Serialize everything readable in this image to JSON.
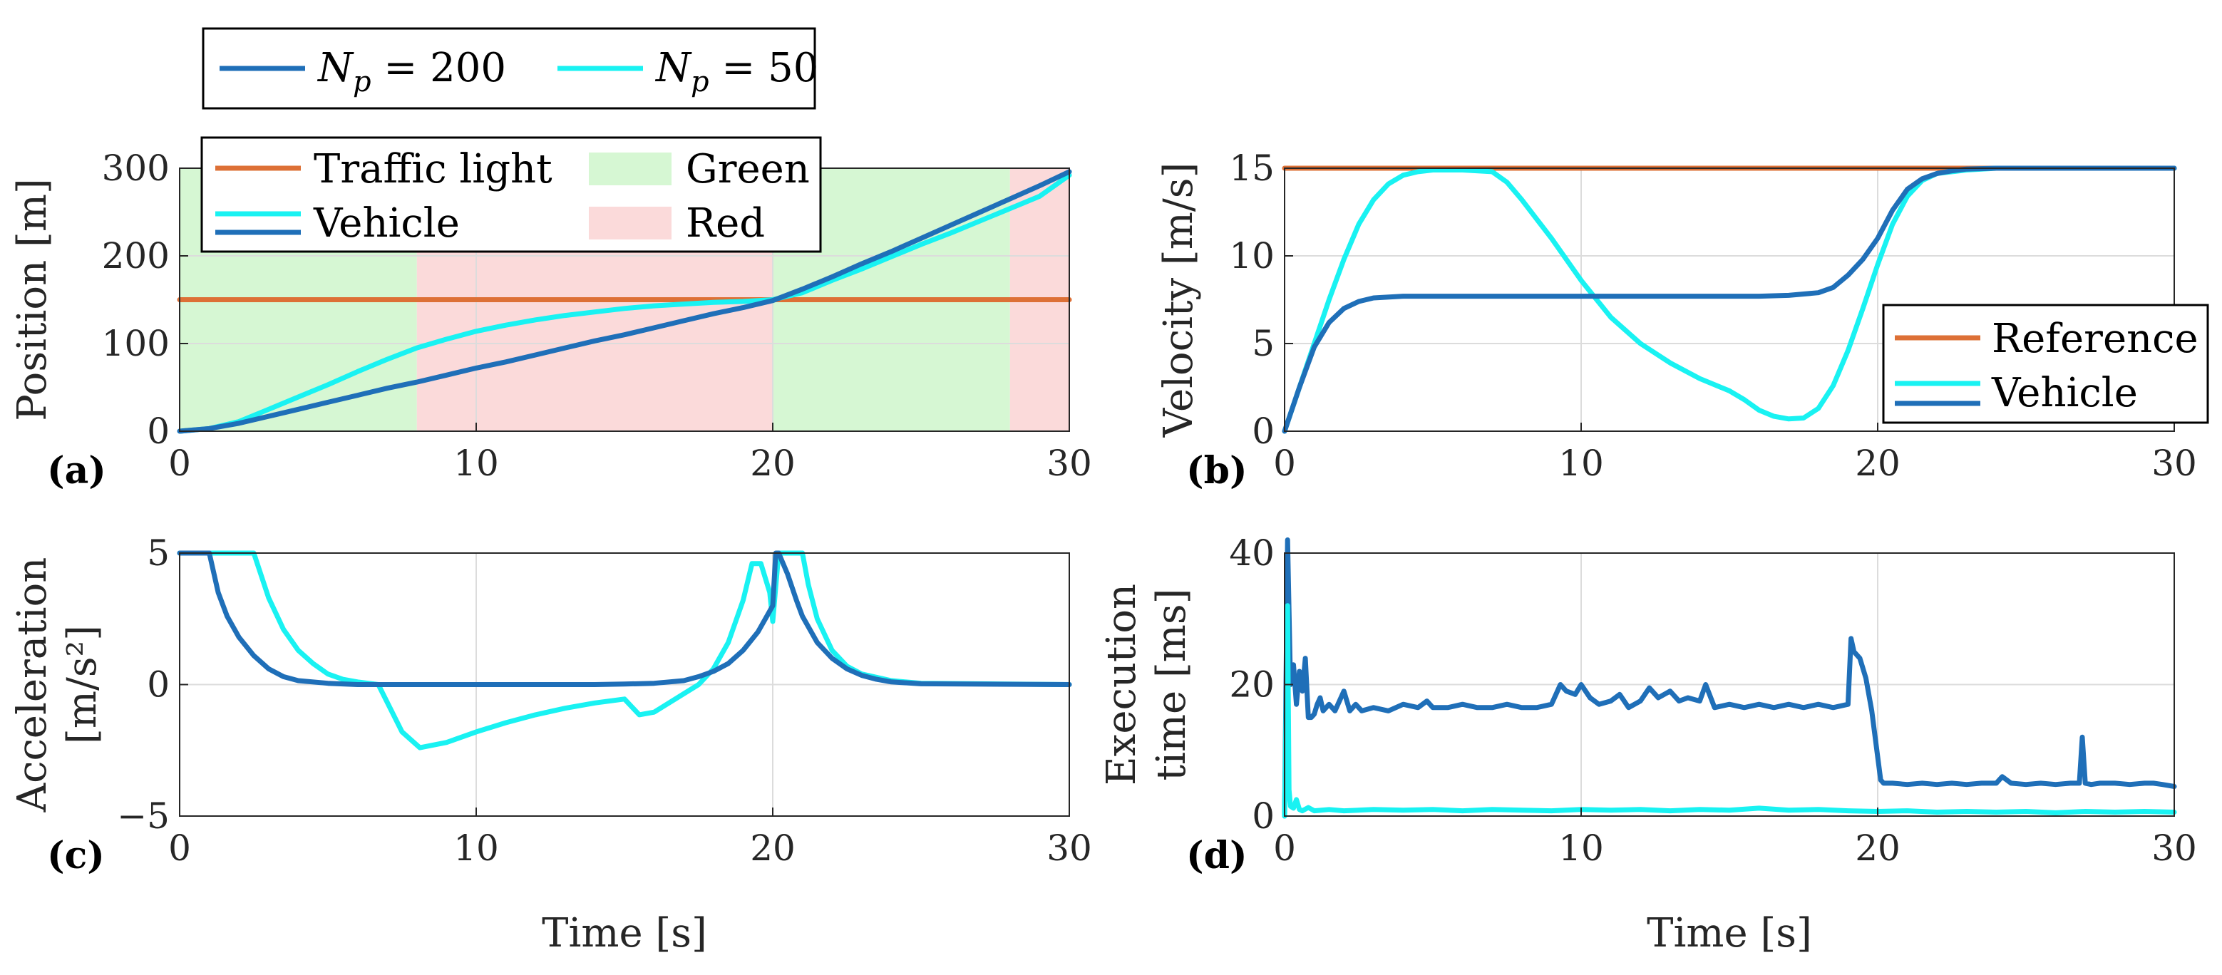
{
  "colors": {
    "np200": "#1f6fb8",
    "np50": "#19f2f2",
    "reference": "#dd7036",
    "green_band": "#d6f7d3",
    "red_band": "#fbdada"
  },
  "legend_top": {
    "entries": [
      {
        "sym": "N",
        "sub": "p",
        "rest": " = 200",
        "color_key": "np200"
      },
      {
        "sym": "N",
        "sub": "p",
        "rest": " = 50",
        "color_key": "np50"
      }
    ]
  },
  "chart_data": [
    {
      "id": "a",
      "tag": "(a)",
      "type": "line",
      "ylabel": "Position [m]",
      "xlabel": "",
      "xlim": [
        0,
        30
      ],
      "ylim": [
        0,
        300
      ],
      "xticks": [
        0,
        10,
        20,
        30
      ],
      "yticks": [
        0,
        100,
        200,
        300
      ],
      "grid": true,
      "bands": [
        {
          "from": 0,
          "to": 8,
          "state": "green"
        },
        {
          "from": 8,
          "to": 20,
          "state": "red"
        },
        {
          "from": 20,
          "to": 28,
          "state": "green"
        },
        {
          "from": 28,
          "to": 30,
          "state": "red"
        }
      ],
      "legend": {
        "placement": "top-left",
        "entries": [
          "Traffic light",
          "Vehicle",
          "Green",
          "Red"
        ]
      },
      "series": [
        {
          "name": "Traffic light",
          "color_key": "reference",
          "x": [
            0,
            30
          ],
          "y": [
            150,
            150
          ]
        },
        {
          "name": "Vehicle",
          "color_key": "np50",
          "x": [
            0,
            1,
            2,
            3,
            4,
            5,
            6,
            7,
            8,
            9,
            10,
            11,
            12,
            13,
            14,
            15,
            16,
            17,
            18,
            19,
            20,
            21,
            22,
            23,
            24,
            25,
            26,
            27,
            28,
            29,
            30
          ],
          "y": [
            0,
            3,
            11,
            25,
            39,
            53,
            68,
            82,
            95,
            105,
            114,
            121,
            127,
            132,
            136,
            140,
            143,
            145,
            147,
            148,
            150,
            158,
            172,
            185,
            199,
            213,
            226,
            240,
            254,
            268,
            292
          ]
        },
        {
          "name": "Vehicle",
          "color_key": "np200",
          "x": [
            0,
            1,
            2,
            3,
            4,
            5,
            6,
            7,
            8,
            9,
            10,
            11,
            12,
            13,
            14,
            15,
            16,
            17,
            18,
            19,
            20,
            21,
            22,
            23,
            24,
            25,
            26,
            27,
            28,
            29,
            30
          ],
          "y": [
            0,
            3,
            9,
            17,
            25,
            33,
            41,
            49,
            56,
            64,
            72,
            79,
            87,
            95,
            103,
            110,
            118,
            126,
            134,
            141,
            149,
            162,
            176,
            191,
            205,
            220,
            235,
            250,
            265,
            280,
            296
          ]
        }
      ]
    },
    {
      "id": "b",
      "tag": "(b)",
      "type": "line",
      "ylabel": "Velocity [m/s]",
      "xlabel": "",
      "xlim": [
        0,
        30
      ],
      "ylim": [
        0,
        15
      ],
      "xticks": [
        0,
        10,
        20,
        30
      ],
      "yticks": [
        0,
        5,
        10,
        15
      ],
      "grid": true,
      "legend": {
        "placement": "bottom-right",
        "entries": [
          "Reference",
          "Vehicle"
        ]
      },
      "series": [
        {
          "name": "Reference",
          "color_key": "reference",
          "x": [
            0,
            30
          ],
          "y": [
            15,
            15
          ]
        },
        {
          "name": "Vehicle",
          "color_key": "np50",
          "x": [
            0,
            0.5,
            1,
            1.5,
            2,
            2.5,
            3,
            3.5,
            4,
            4.5,
            5,
            6,
            7,
            7.5,
            8,
            9,
            10,
            11,
            12,
            13,
            14,
            15,
            15.5,
            16,
            16.5,
            17,
            17.5,
            18,
            18.5,
            19,
            19.5,
            20,
            20.5,
            21,
            21.5,
            22,
            23,
            24,
            25,
            30
          ],
          "y": [
            0,
            2.5,
            5,
            7.5,
            9.8,
            11.8,
            13.2,
            14.1,
            14.6,
            14.8,
            14.9,
            14.9,
            14.8,
            14.2,
            13.2,
            11,
            8.6,
            6.5,
            5,
            3.9,
            3,
            2.3,
            1.8,
            1.2,
            0.85,
            0.7,
            0.75,
            1.3,
            2.6,
            4.6,
            7,
            9.5,
            11.8,
            13.4,
            14.3,
            14.7,
            14.9,
            15,
            15,
            15
          ]
        },
        {
          "name": "Vehicle",
          "color_key": "np200",
          "x": [
            0,
            0.5,
            1,
            1.5,
            2,
            2.5,
            3,
            4,
            5,
            6,
            8,
            10,
            12,
            14,
            16,
            17,
            18,
            18.5,
            19,
            19.5,
            20,
            20.5,
            21,
            21.5,
            22,
            22.5,
            23,
            24,
            25,
            30
          ],
          "y": [
            0,
            2.5,
            4.8,
            6.2,
            7,
            7.4,
            7.6,
            7.7,
            7.7,
            7.7,
            7.7,
            7.7,
            7.7,
            7.7,
            7.7,
            7.75,
            7.9,
            8.2,
            8.9,
            9.8,
            11,
            12.6,
            13.8,
            14.4,
            14.7,
            14.85,
            14.95,
            15,
            15,
            15
          ]
        }
      ]
    },
    {
      "id": "c",
      "tag": "(c)",
      "type": "line",
      "ylabel": "Acceleration",
      "ylabel2": "[m/s²]",
      "xlabel": "Time [s]",
      "xlim": [
        0,
        30
      ],
      "ylim": [
        -5,
        5
      ],
      "xticks": [
        0,
        10,
        20,
        30
      ],
      "yticks": [
        -5,
        0,
        5
      ],
      "ytick_labels": [
        "−5",
        "0",
        "5"
      ],
      "grid": true,
      "series": [
        {
          "name": "Nₚ = 50",
          "color_key": "np50",
          "x": [
            0,
            2.5,
            3,
            3.5,
            4,
            4.5,
            5,
            5.5,
            6,
            6.7,
            7.5,
            8.1,
            9,
            10,
            11,
            12,
            13,
            14,
            15,
            15.5,
            16,
            17,
            17.5,
            18,
            18.5,
            19,
            19.3,
            19.6,
            19.9,
            20,
            20.2,
            21,
            21.2,
            21.5,
            22,
            22.5,
            23,
            24,
            25,
            30
          ],
          "y": [
            5,
            5,
            3.3,
            2.1,
            1.3,
            0.8,
            0.4,
            0.2,
            0.1,
            0,
            -1.8,
            -2.4,
            -2.2,
            -1.8,
            -1.45,
            -1.15,
            -0.9,
            -0.7,
            -0.55,
            -1.15,
            -1.05,
            -0.35,
            0,
            0.6,
            1.6,
            3.2,
            4.6,
            4.6,
            3.5,
            2.4,
            5,
            5,
            3.8,
            2.5,
            1.3,
            0.7,
            0.4,
            0.15,
            0.05,
            0
          ]
        },
        {
          "name": "Nₚ = 200",
          "color_key": "np200",
          "x": [
            0,
            1,
            1.3,
            1.6,
            2,
            2.5,
            3,
            3.5,
            4,
            5,
            6,
            8,
            10,
            12,
            14,
            15,
            16,
            17,
            17.5,
            18,
            18.5,
            19,
            19.5,
            19.8,
            20,
            20.1,
            20.2,
            20.5,
            20.8,
            21,
            21.5,
            22,
            22.5,
            23,
            23.5,
            24,
            25,
            30
          ],
          "y": [
            5,
            5,
            3.5,
            2.6,
            1.8,
            1.1,
            0.6,
            0.3,
            0.15,
            0.05,
            0,
            0,
            0,
            0,
            0,
            0.02,
            0.05,
            0.15,
            0.3,
            0.5,
            0.8,
            1.3,
            2,
            2.6,
            3,
            5,
            5,
            4.2,
            3.2,
            2.6,
            1.6,
            1,
            0.6,
            0.35,
            0.2,
            0.1,
            0.03,
            0
          ]
        }
      ]
    },
    {
      "id": "d",
      "tag": "(d)",
      "type": "line",
      "ylabel": "Execution",
      "ylabel2": "time [ms]",
      "xlabel": "Time [s]",
      "xlim": [
        0,
        30
      ],
      "ylim": [
        0,
        40
      ],
      "xticks": [
        0,
        10,
        20,
        30
      ],
      "yticks": [
        0,
        20,
        40
      ],
      "grid": true,
      "series": [
        {
          "name": "Nₚ = 200",
          "color_key": "np200",
          "x": [
            0,
            0.1,
            0.2,
            0.3,
            0.4,
            0.5,
            0.6,
            0.7,
            0.8,
            0.9,
            1.0,
            1.1,
            1.2,
            1.3,
            1.5,
            1.7,
            2,
            2.2,
            2.4,
            2.6,
            3,
            3.5,
            4,
            4.5,
            4.8,
            5,
            5.5,
            6,
            6.5,
            7,
            7.5,
            8,
            8.5,
            9,
            9.3,
            9.5,
            9.8,
            10,
            10.3,
            10.6,
            11,
            11.3,
            11.6,
            12,
            12.3,
            12.6,
            13,
            13.3,
            13.6,
            14,
            14.2,
            14.5,
            15,
            15.5,
            16,
            16.5,
            17,
            17.5,
            18,
            18.5,
            19,
            19.1,
            19.2,
            19.4,
            19.6,
            19.8,
            20,
            20.1,
            20.2,
            20.5,
            21,
            21.5,
            22,
            22.5,
            23,
            23.5,
            24,
            24.2,
            24.5,
            25,
            25.5,
            26,
            26.5,
            26.8,
            26.9,
            27,
            27.2,
            27.5,
            28,
            28.5,
            29,
            29.3,
            29.6,
            30
          ],
          "y": [
            0,
            42,
            20,
            23,
            17,
            22,
            19,
            24,
            15,
            15,
            15.5,
            17,
            18,
            16,
            17,
            16,
            19,
            16,
            17,
            16,
            16.5,
            16,
            17,
            16.5,
            17.5,
            16.5,
            16.5,
            17,
            16.5,
            16.5,
            17,
            16.5,
            16.5,
            17,
            20,
            19,
            18.5,
            20,
            18,
            17,
            17.5,
            18.5,
            16.5,
            17.5,
            19.5,
            18,
            19,
            17.5,
            18,
            17.5,
            20,
            16.5,
            17,
            16.5,
            17,
            16.5,
            17,
            16.5,
            17,
            16.5,
            17,
            27,
            25,
            24,
            21,
            16,
            9,
            5.5,
            5,
            5,
            4.8,
            5,
            4.8,
            5,
            4.8,
            5,
            5,
            6,
            5,
            4.8,
            5,
            4.8,
            5,
            5,
            12,
            5,
            4.8,
            5,
            5,
            4.8,
            5,
            5,
            4.8,
            4.5
          ]
        },
        {
          "name": "Nₚ = 50",
          "color_key": "np50",
          "x": [
            0,
            0.1,
            0.15,
            0.2,
            0.3,
            0.4,
            0.5,
            0.6,
            0.8,
            1,
            1.5,
            2,
            3,
            4,
            5,
            6,
            7,
            8,
            9,
            10,
            11,
            12,
            13,
            14,
            15,
            16,
            17,
            18,
            19,
            20,
            21,
            22,
            23,
            24,
            25,
            26,
            27,
            28,
            29,
            30
          ],
          "y": [
            0,
            32,
            4,
            1.5,
            1.2,
            2.5,
            1,
            0.8,
            1.3,
            0.8,
            1,
            0.8,
            1,
            0.9,
            1,
            0.8,
            1,
            0.9,
            0.8,
            1,
            0.9,
            1,
            0.8,
            1,
            0.9,
            1.2,
            0.9,
            1,
            0.8,
            0.7,
            0.8,
            0.6,
            0.7,
            0.6,
            0.7,
            0.5,
            0.7,
            0.6,
            0.7,
            0.6
          ]
        }
      ]
    }
  ]
}
